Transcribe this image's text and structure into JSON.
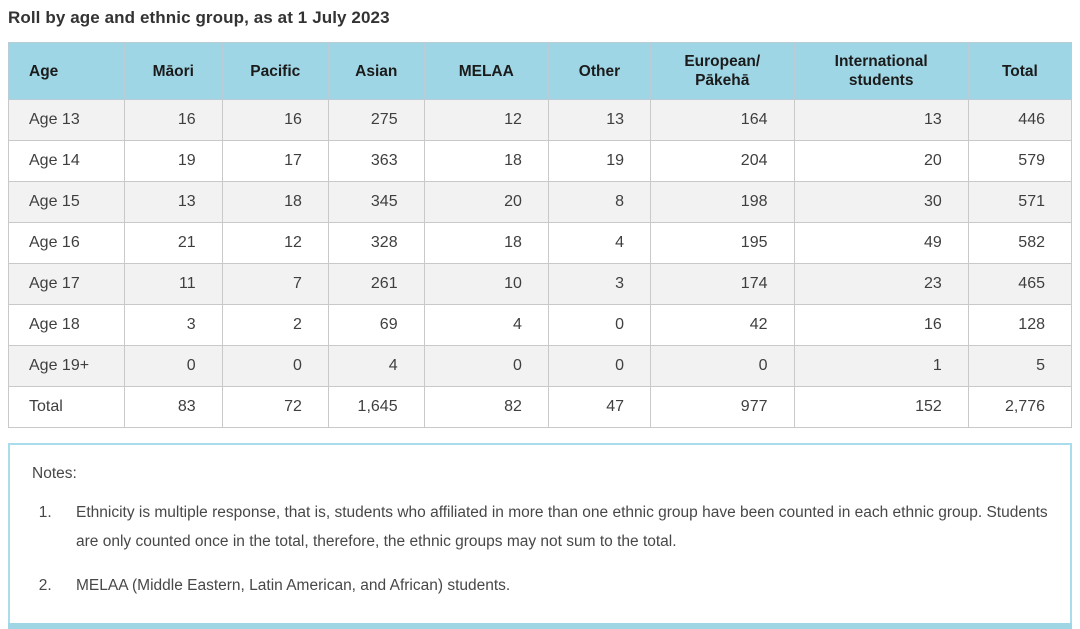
{
  "title": "Roll by age and ethnic group, as at 1 July 2023",
  "colors": {
    "header_bg": "#9fd6e5",
    "alt_row_bg": "#f2f2f2",
    "cell_border": "#c9c9c9",
    "notes_border": "#a9ddec",
    "title_text": "#333333"
  },
  "table": {
    "columns": [
      "Age",
      "Māori",
      "Pacific",
      "Asian",
      "MELAA",
      "Other",
      "European/ Pākehā",
      "International students",
      "Total"
    ],
    "column_widths_pct": [
      10.9,
      9.2,
      10.0,
      9.0,
      11.7,
      9.6,
      13.5,
      16.4,
      9.7
    ],
    "rows": [
      {
        "label": "Age 13",
        "values": [
          "16",
          "16",
          "275",
          "12",
          "13",
          "164",
          "13",
          "446"
        ]
      },
      {
        "label": "Age 14",
        "values": [
          "19",
          "17",
          "363",
          "18",
          "19",
          "204",
          "20",
          "579"
        ]
      },
      {
        "label": "Age 15",
        "values": [
          "13",
          "18",
          "345",
          "20",
          "8",
          "198",
          "30",
          "571"
        ]
      },
      {
        "label": "Age 16",
        "values": [
          "21",
          "12",
          "328",
          "18",
          "4",
          "195",
          "49",
          "582"
        ]
      },
      {
        "label": "Age 17",
        "values": [
          "11",
          "7",
          "261",
          "10",
          "3",
          "174",
          "23",
          "465"
        ]
      },
      {
        "label": "Age 18",
        "values": [
          "3",
          "2",
          "69",
          "4",
          "0",
          "42",
          "16",
          "128"
        ]
      },
      {
        "label": "Age 19+",
        "values": [
          "0",
          "0",
          "4",
          "0",
          "0",
          "0",
          "1",
          "5"
        ]
      },
      {
        "label": "Total",
        "values": [
          "83",
          "72",
          "1,645",
          "82",
          "47",
          "977",
          "152",
          "2,776"
        ]
      }
    ]
  },
  "notes": {
    "label": "Notes:",
    "items": [
      "Ethnicity is multiple response, that is, students who affiliated in more than one ethnic group have been counted in each ethnic group. Students are only counted once in the total, therefore, the ethnic groups may not sum to the total.",
      "MELAA (Middle Eastern, Latin American, and African) students."
    ]
  },
  "chart_data": {
    "type": "table",
    "title": "Roll by age and ethnic group, as at 1 July 2023",
    "columns": [
      "Age",
      "Māori",
      "Pacific",
      "Asian",
      "MELAA",
      "Other",
      "European/Pākehā",
      "International students",
      "Total"
    ],
    "rows": [
      [
        "Age 13",
        16,
        16,
        275,
        12,
        13,
        164,
        13,
        446
      ],
      [
        "Age 14",
        19,
        17,
        363,
        18,
        19,
        204,
        20,
        579
      ],
      [
        "Age 15",
        13,
        18,
        345,
        20,
        8,
        198,
        30,
        571
      ],
      [
        "Age 16",
        21,
        12,
        328,
        18,
        4,
        195,
        49,
        582
      ],
      [
        "Age 17",
        11,
        7,
        261,
        10,
        3,
        174,
        23,
        465
      ],
      [
        "Age 18",
        3,
        2,
        69,
        4,
        0,
        42,
        16,
        128
      ],
      [
        "Age 19+",
        0,
        0,
        4,
        0,
        0,
        0,
        1,
        5
      ],
      [
        "Total",
        83,
        72,
        1645,
        82,
        47,
        977,
        152,
        2776
      ]
    ]
  }
}
